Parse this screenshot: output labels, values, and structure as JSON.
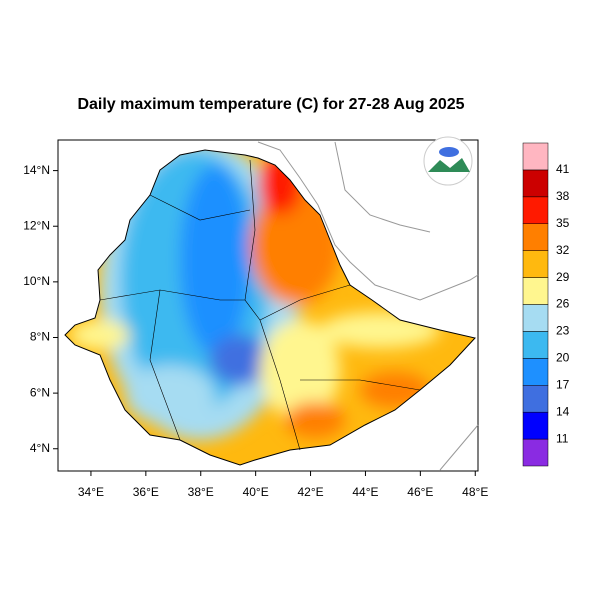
{
  "chart_data": {
    "type": "map",
    "title": "Daily maximum temperature (C) for 27-28 Aug 2025",
    "xlim": [
      32.8,
      48.1
    ],
    "ylim": [
      3.2,
      15.1
    ],
    "xticks": [
      {
        "value": 34,
        "label": "34°E"
      },
      {
        "value": 36,
        "label": "36°E"
      },
      {
        "value": 38,
        "label": "38°E"
      },
      {
        "value": 40,
        "label": "40°E"
      },
      {
        "value": 42,
        "label": "42°E"
      },
      {
        "value": 44,
        "label": "44°E"
      },
      {
        "value": 46,
        "label": "46°E"
      },
      {
        "value": 48,
        "label": "48°E"
      }
    ],
    "yticks": [
      {
        "value": 4,
        "label": "4°N"
      },
      {
        "value": 6,
        "label": "6°N"
      },
      {
        "value": 8,
        "label": "8°N"
      },
      {
        "value": 10,
        "label": "10°N"
      },
      {
        "value": 12,
        "label": "12°N"
      },
      {
        "value": 14,
        "label": "14°N"
      }
    ],
    "colorbar": {
      "levels": [
        11,
        14,
        17,
        20,
        23,
        26,
        29,
        32,
        35,
        38,
        41
      ],
      "colors": [
        "#8a2be2",
        "#0000ff",
        "#3f6fe0",
        "#1e90ff",
        "#3cb9f0",
        "#a6dcf2",
        "#fff68f",
        "#ffb90f",
        "#ff7f00",
        "#ff1a00",
        "#cc0000",
        "#ffb6c1"
      ]
    }
  }
}
